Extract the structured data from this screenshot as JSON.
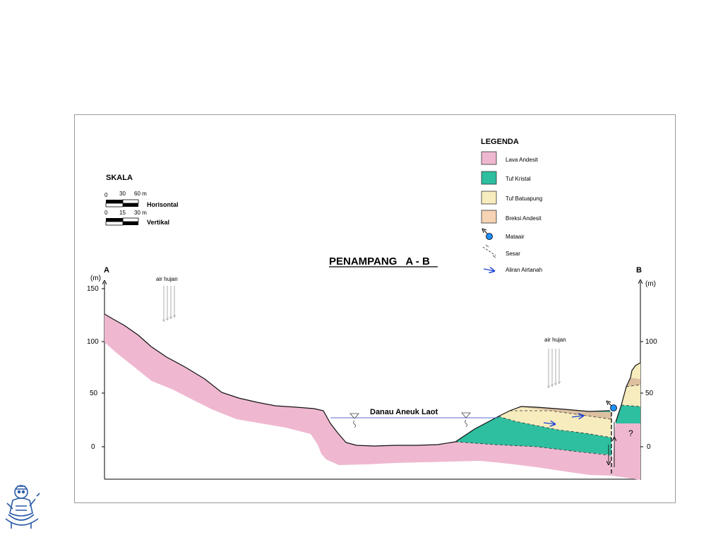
{
  "title": "PENAMPANG   A - B",
  "scale": {
    "heading": "SKALA",
    "horizontal": {
      "ticks": [
        "0",
        "30",
        "60 m"
      ],
      "label": "Horisontal"
    },
    "vertical": {
      "ticks": [
        "0",
        "15",
        "30 m"
      ],
      "label": "Vertikal"
    }
  },
  "legend": {
    "heading": "LEGENDA",
    "items": [
      {
        "label": "Lava Andesit",
        "color": "#efb8d0",
        "symbol": "swatch"
      },
      {
        "label": "Tuf Kristal",
        "color": "#2dbf9f",
        "symbol": "swatch"
      },
      {
        "label": "Tuf Batuapung",
        "color": "#f7ecbd",
        "symbol": "swatch"
      },
      {
        "label": "Breksi Andesit",
        "color": "#f5d3b4",
        "symbol": "swatch"
      },
      {
        "label": "Mataair",
        "color": "#1e90ff",
        "symbol": "spring-icon"
      },
      {
        "label": "Sesar",
        "color": "#555555",
        "symbol": "fault-icon"
      },
      {
        "label": "Aliran Airtanah",
        "color": "#1a3fd6",
        "symbol": "arrow-icon"
      }
    ]
  },
  "axes": {
    "left_end": "A",
    "right_end": "B",
    "unit": "(m)",
    "left_ticks": [
      "150",
      "100",
      "50",
      "0"
    ],
    "right_ticks": [
      "100",
      "50",
      "0"
    ]
  },
  "annotations": {
    "rain_left": "air hujan",
    "rain_right": "air hujan",
    "lake": "Danau Aneuk Laot",
    "unknown": "?"
  }
}
